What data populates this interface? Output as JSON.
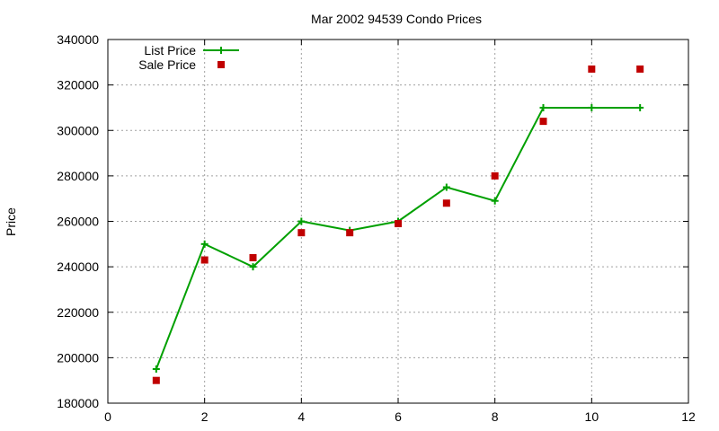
{
  "chart_data": {
    "type": "line",
    "title": "Mar 2002 94539 Condo Prices",
    "xlabel": "",
    "ylabel": "Price",
    "xlim": [
      0,
      12
    ],
    "ylim": [
      180000,
      340000
    ],
    "xticks": [
      0,
      2,
      4,
      6,
      8,
      10,
      12
    ],
    "yticks": [
      180000,
      200000,
      220000,
      240000,
      260000,
      280000,
      300000,
      320000,
      340000
    ],
    "grid": true,
    "legend_position": "top-left",
    "series": [
      {
        "name": "List Price",
        "style": "line+plus-markers",
        "color": "#00a000",
        "x": [
          1,
          2,
          3,
          4,
          5,
          6,
          7,
          8,
          9,
          10,
          11
        ],
        "y": [
          195000,
          250000,
          240000,
          260000,
          256000,
          260000,
          275000,
          269000,
          310000,
          310000,
          310000
        ]
      },
      {
        "name": "Sale Price",
        "style": "square-markers",
        "color": "#c00000",
        "x": [
          1,
          2,
          3,
          4,
          5,
          6,
          7,
          8,
          9,
          10,
          11
        ],
        "y": [
          190000,
          243000,
          244000,
          255000,
          255000,
          259000,
          268000,
          280000,
          304000,
          327000,
          327000
        ]
      }
    ]
  }
}
